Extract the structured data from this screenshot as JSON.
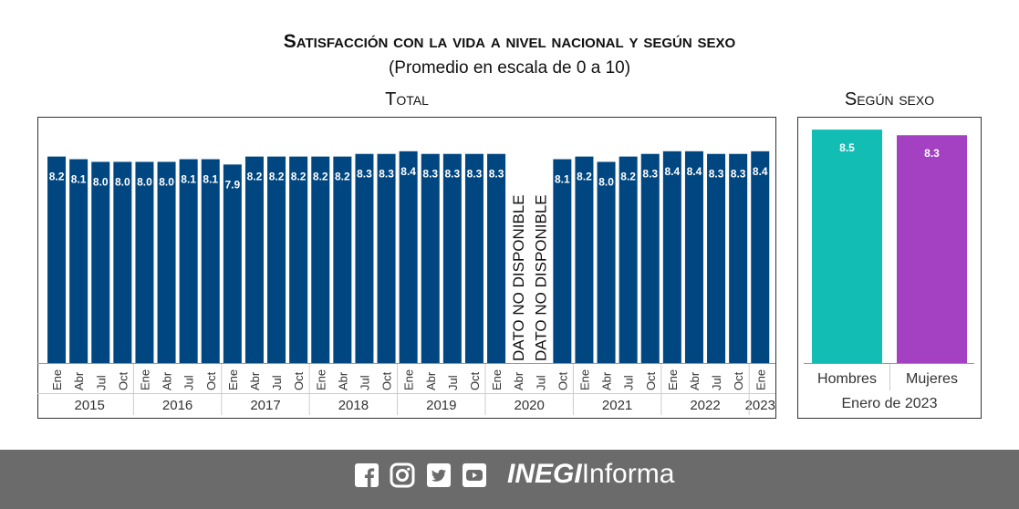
{
  "title": "Satisfacción con la vida a nivel nacional y según sexo",
  "subtitle": "(Promedio en escala de 0 a 10)",
  "panels": {
    "total_title": "Total",
    "sexo_title": "Según sexo",
    "sexo_period": "Enero de 2023"
  },
  "unavailable_label": "DATO NO DISPONIBLE",
  "footer": {
    "brand_bold": "INEGI",
    "brand_rest": "Informa",
    "icons": [
      "facebook-icon",
      "instagram-icon",
      "twitter-icon",
      "youtube-icon"
    ]
  },
  "colors": {
    "total_bar": "#004680",
    "hombres": "#12BDB4",
    "mujeres": "#A341C2",
    "footer": "#6B6B6B"
  },
  "chart_data": [
    {
      "type": "bar",
      "title": "Total",
      "ylim": [
        0,
        8.6
      ],
      "categories": [
        {
          "month": "Ene",
          "year": "2015",
          "value": 8.2
        },
        {
          "month": "Abr",
          "year": "2015",
          "value": 8.1
        },
        {
          "month": "Jul",
          "year": "2015",
          "value": 8.0
        },
        {
          "month": "Oct",
          "year": "2015",
          "value": 8.0
        },
        {
          "month": "Ene",
          "year": "2016",
          "value": 8.0
        },
        {
          "month": "Abr",
          "year": "2016",
          "value": 8.0
        },
        {
          "month": "Jul",
          "year": "2016",
          "value": 8.1
        },
        {
          "month": "Oct",
          "year": "2016",
          "value": 8.1
        },
        {
          "month": "Ene",
          "year": "2017",
          "value": 7.9
        },
        {
          "month": "Abr",
          "year": "2017",
          "value": 8.2
        },
        {
          "month": "Jul",
          "year": "2017",
          "value": 8.2
        },
        {
          "month": "Oct",
          "year": "2017",
          "value": 8.2
        },
        {
          "month": "Ene",
          "year": "2018",
          "value": 8.2
        },
        {
          "month": "Abr",
          "year": "2018",
          "value": 8.2
        },
        {
          "month": "Jul",
          "year": "2018",
          "value": 8.3
        },
        {
          "month": "Oct",
          "year": "2018",
          "value": 8.3
        },
        {
          "month": "Ene",
          "year": "2019",
          "value": 8.4
        },
        {
          "month": "Abr",
          "year": "2019",
          "value": 8.3
        },
        {
          "month": "Jul",
          "year": "2019",
          "value": 8.3
        },
        {
          "month": "Oct",
          "year": "2019",
          "value": 8.3
        },
        {
          "month": "Ene",
          "year": "2020",
          "value": 8.3
        },
        {
          "month": "Abr",
          "year": "2020",
          "value": null
        },
        {
          "month": "Jul",
          "year": "2020",
          "value": null
        },
        {
          "month": "Oct",
          "year": "2020",
          "value": 8.1
        },
        {
          "month": "Ene",
          "year": "2021",
          "value": 8.2
        },
        {
          "month": "Abr",
          "year": "2021",
          "value": 8.0
        },
        {
          "month": "Jul",
          "year": "2021",
          "value": 8.2
        },
        {
          "month": "Oct",
          "year": "2021",
          "value": 8.3
        },
        {
          "month": "Ene",
          "year": "2022",
          "value": 8.4
        },
        {
          "month": "Abr",
          "year": "2022",
          "value": 8.4
        },
        {
          "month": "Jul",
          "year": "2022",
          "value": 8.3
        },
        {
          "month": "Oct",
          "year": "2022",
          "value": 8.3
        },
        {
          "month": "Ene",
          "year": "2023",
          "value": 8.4
        }
      ],
      "years": [
        "2015",
        "2016",
        "2017",
        "2018",
        "2019",
        "2020",
        "2021",
        "2022",
        "2023"
      ]
    },
    {
      "type": "bar",
      "title": "Según sexo",
      "xlabel": "Enero de 2023",
      "ylim": [
        0,
        8.6
      ],
      "categories": [
        "Hombres",
        "Mujeres"
      ],
      "values": [
        8.5,
        8.3
      ]
    }
  ]
}
